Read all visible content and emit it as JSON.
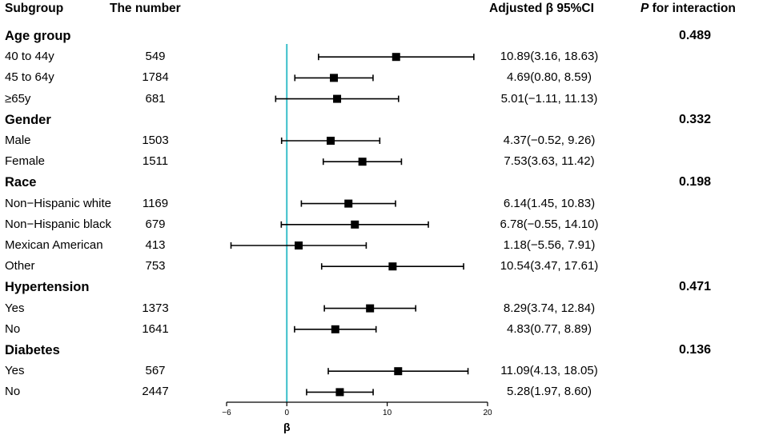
{
  "headers": {
    "subgroup": "Subgroup",
    "number": "The number",
    "estimate": "Adjusted β 95%CI",
    "p_italic": "P",
    "p_rest": " for interaction"
  },
  "colors": {
    "reference_line": "#38bec9",
    "marks": "#000000"
  },
  "chart_data": {
    "type": "forest",
    "xlabel": "β",
    "xlim": [
      -6,
      20
    ],
    "xticks": [
      -6,
      0,
      10,
      20
    ],
    "reference_value": 0,
    "rows": [
      {
        "kind": "group",
        "label": "Age group",
        "p": "0.489"
      },
      {
        "kind": "item",
        "label": "40 to 44y",
        "n": "549",
        "est": 10.89,
        "lo": 3.16,
        "hi": 18.63,
        "text": "10.89(3.16, 18.63)"
      },
      {
        "kind": "item",
        "label": "45 to 64y",
        "n": "1784",
        "est": 4.69,
        "lo": 0.8,
        "hi": 8.59,
        "text": "4.69(0.80, 8.59)"
      },
      {
        "kind": "item",
        "label": "≥65y",
        "n": "681",
        "est": 5.01,
        "lo": -1.11,
        "hi": 11.13,
        "text": "5.01(−1.11, 11.13)"
      },
      {
        "kind": "group",
        "label": "Gender",
        "p": "0.332"
      },
      {
        "kind": "item",
        "label": "Male",
        "n": "1503",
        "est": 4.37,
        "lo": -0.52,
        "hi": 9.26,
        "text": "4.37(−0.52, 9.26)"
      },
      {
        "kind": "item",
        "label": "Female",
        "n": "1511",
        "est": 7.53,
        "lo": 3.63,
        "hi": 11.42,
        "text": "7.53(3.63, 11.42)"
      },
      {
        "kind": "group",
        "label": "Race",
        "p": "0.198"
      },
      {
        "kind": "item",
        "label": "Non−Hispanic white",
        "n": "1169",
        "est": 6.14,
        "lo": 1.45,
        "hi": 10.83,
        "text": "6.14(1.45, 10.83)"
      },
      {
        "kind": "item",
        "label": "Non−Hispanic black",
        "n": "679",
        "est": 6.78,
        "lo": -0.55,
        "hi": 14.1,
        "text": "6.78(−0.55, 14.10)"
      },
      {
        "kind": "item",
        "label": "Mexican American",
        "n": "413",
        "est": 1.18,
        "lo": -5.56,
        "hi": 7.91,
        "text": "1.18(−5.56, 7.91)"
      },
      {
        "kind": "item",
        "label": "Other",
        "n": "753",
        "est": 10.54,
        "lo": 3.47,
        "hi": 17.61,
        "text": "10.54(3.47, 17.61)"
      },
      {
        "kind": "group",
        "label": "Hypertension",
        "p": "0.471"
      },
      {
        "kind": "item",
        "label": "Yes",
        "n": "1373",
        "est": 8.29,
        "lo": 3.74,
        "hi": 12.84,
        "text": "8.29(3.74, 12.84)"
      },
      {
        "kind": "item",
        "label": "No",
        "n": "1641",
        "est": 4.83,
        "lo": 0.77,
        "hi": 8.89,
        "text": "4.83(0.77, 8.89)"
      },
      {
        "kind": "group",
        "label": "Diabetes",
        "p": "0.136"
      },
      {
        "kind": "item",
        "label": "Yes",
        "n": "567",
        "est": 11.09,
        "lo": 4.13,
        "hi": 18.05,
        "text": "11.09(4.13, 18.05)"
      },
      {
        "kind": "item",
        "label": "No",
        "n": "2447",
        "est": 5.28,
        "lo": 1.97,
        "hi": 8.6,
        "text": "5.28(1.97, 8.60)"
      }
    ]
  }
}
